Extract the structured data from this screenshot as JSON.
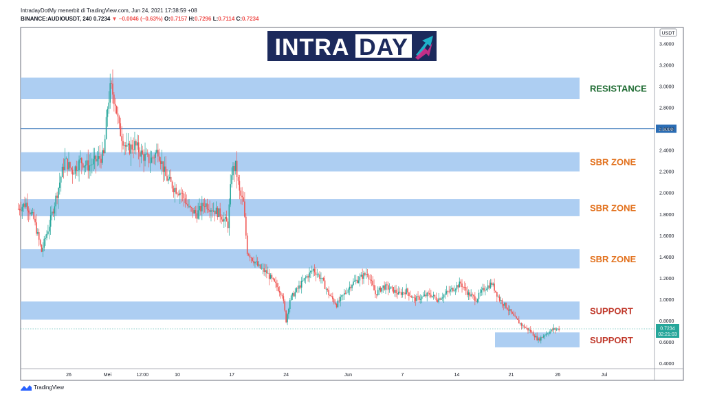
{
  "header": {
    "line1": "IntradayDotMy menerbit di TradingView.com, Jun 24, 2021 17:38:59 +08",
    "symbol": "BINANCE:AUDIOUSDT, 240",
    "last": "0.7234",
    "change": "▼ −0.0046 (−0.63%)",
    "o_label": "O:",
    "o_value": "0.7157",
    "h_label": "H:",
    "h_value": "0.7296",
    "l_label": "L:",
    "l_value": "0.7114",
    "c_label": "C:",
    "c_value": "0.7234"
  },
  "logo": {
    "text_main": "INTRA",
    "text_day": "DAY"
  },
  "footer": {
    "brand": "TradingView"
  },
  "colors": {
    "zone": "#9fc5f0",
    "resistance_text": "#1e6b32",
    "zone_text": "#e2711d",
    "support_text": "#c0392b",
    "bull": "#26a69a",
    "bear": "#ef5350",
    "line": "#2a6db5",
    "logo_bg": "#1c2a5c"
  },
  "chart_data": {
    "type": "candlestick",
    "currency": "USDT",
    "ylim": [
      0.35,
      3.55
    ],
    "yticks": [
      "3.4000",
      "3.2000",
      "3.0000",
      "2.8000",
      "2.6000",
      "2.4000",
      "2.2000",
      "2.0000",
      "1.8000",
      "1.6000",
      "1.4000",
      "1.2000",
      "1.0000",
      "0.8000",
      "0.6000",
      "0.4000"
    ],
    "xticks": [
      {
        "label": "26",
        "day": 0
      },
      {
        "label": "Mei",
        "day": 5
      },
      {
        "label": "12:00",
        "day": 9.5
      },
      {
        "label": "10",
        "day": 14
      },
      {
        "label": "17",
        "day": 21
      },
      {
        "label": "24",
        "day": 28
      },
      {
        "label": "Jun",
        "day": 36
      },
      {
        "label": "7",
        "day": 43
      },
      {
        "label": "14",
        "day": 50
      },
      {
        "label": "21",
        "day": 57
      },
      {
        "label": "26",
        "day": 63
      },
      {
        "label": "Jul",
        "day": 69
      }
    ],
    "zones": [
      {
        "label": "RESISTANCE",
        "y0": 2.88,
        "y1": 3.08,
        "kind": "resistance"
      },
      {
        "label": "SBR ZONE",
        "y0": 2.2,
        "y1": 2.38,
        "kind": "sbr"
      },
      {
        "label": "SBR ZONE",
        "y0": 1.78,
        "y1": 1.94,
        "kind": "sbr"
      },
      {
        "label": "SBR ZONE",
        "y0": 1.29,
        "y1": 1.47,
        "kind": "sbr"
      },
      {
        "label": "SUPPORT",
        "y0": 0.81,
        "y1": 0.98,
        "kind": "support"
      },
      {
        "label": "SUPPORT",
        "y0": 0.55,
        "y1": 0.69,
        "kind": "support2"
      }
    ],
    "hline": {
      "value": 2.6,
      "label": "2.6000"
    },
    "last_price": {
      "value": 0.7234,
      "label": "0.7234",
      "countdown": "02:21:03"
    },
    "price_path": [
      [
        -6.5,
        1.85
      ],
      [
        -5.5,
        1.9
      ],
      [
        -4.5,
        1.75
      ],
      [
        -3.5,
        1.45
      ],
      [
        -2.5,
        1.7
      ],
      [
        -1.5,
        2.0
      ],
      [
        -0.5,
        2.3
      ],
      [
        0.5,
        2.2
      ],
      [
        1.5,
        2.3
      ],
      [
        2.5,
        2.25
      ],
      [
        3.5,
        2.3
      ],
      [
        4.5,
        2.35
      ],
      [
        5.0,
        2.8
      ],
      [
        5.4,
        3.0
      ],
      [
        6.0,
        2.85
      ],
      [
        6.5,
        2.6
      ],
      [
        7.5,
        2.4
      ],
      [
        8.5,
        2.45
      ],
      [
        9.5,
        2.35
      ],
      [
        10.5,
        2.3
      ],
      [
        11.5,
        2.4
      ],
      [
        12.5,
        2.15
      ],
      [
        13.5,
        2.05
      ],
      [
        14.5,
        2.0
      ],
      [
        15.5,
        1.85
      ],
      [
        16.5,
        1.8
      ],
      [
        17.5,
        1.9
      ],
      [
        18.5,
        1.85
      ],
      [
        19.5,
        1.8
      ],
      [
        20.5,
        1.7
      ],
      [
        21.0,
        2.2
      ],
      [
        21.5,
        2.25
      ],
      [
        22.0,
        2.0
      ],
      [
        22.5,
        1.9
      ],
      [
        23.0,
        1.45
      ],
      [
        23.5,
        1.4
      ],
      [
        24.5,
        1.3
      ],
      [
        25.5,
        1.25
      ],
      [
        26.5,
        1.15
      ],
      [
        27.5,
        1.05
      ],
      [
        28.0,
        0.8
      ],
      [
        28.5,
        1.0
      ],
      [
        29.5,
        1.1
      ],
      [
        30.5,
        1.2
      ],
      [
        31.5,
        1.28
      ],
      [
        32.5,
        1.2
      ],
      [
        33.5,
        1.05
      ],
      [
        34.5,
        0.95
      ],
      [
        35.5,
        1.05
      ],
      [
        36.5,
        1.15
      ],
      [
        37.5,
        1.2
      ],
      [
        38.5,
        1.25
      ],
      [
        39.5,
        1.05
      ],
      [
        40.5,
        1.12
      ],
      [
        41.5,
        1.1
      ],
      [
        42.5,
        1.05
      ],
      [
        43.5,
        1.08
      ],
      [
        44.5,
        1.0
      ],
      [
        45.5,
        1.02
      ],
      [
        46.5,
        1.05
      ],
      [
        47.5,
        1.0
      ],
      [
        48.5,
        1.05
      ],
      [
        49.5,
        1.1
      ],
      [
        50.5,
        1.15
      ],
      [
        51.5,
        1.05
      ],
      [
        52.5,
        1.0
      ],
      [
        53.5,
        1.1
      ],
      [
        54.5,
        1.15
      ],
      [
        55.5,
        1.0
      ],
      [
        56.5,
        0.92
      ],
      [
        57.5,
        0.82
      ],
      [
        58.5,
        0.75
      ],
      [
        59.5,
        0.7
      ],
      [
        60.5,
        0.62
      ],
      [
        61.5,
        0.68
      ],
      [
        62.5,
        0.72
      ],
      [
        63.3,
        0.7234
      ]
    ]
  }
}
